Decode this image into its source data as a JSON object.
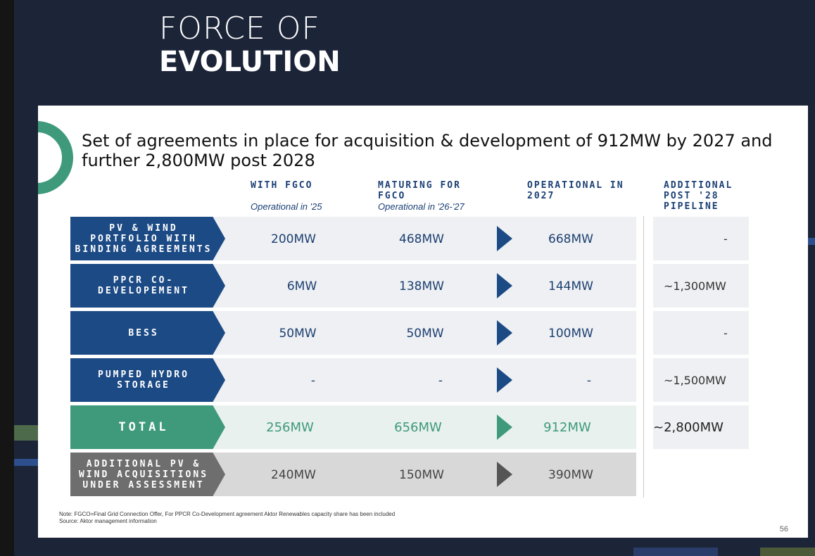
{
  "hero": {
    "line1": "FORCE OF",
    "line2": "EVOLUTION"
  },
  "headline": "Set of agreements in place for acquisition & development of 912MW by 2027 and further 2,800MW post 2028",
  "columns": {
    "fgco": {
      "title": "WITH FGCO",
      "sub": "Operational in '25"
    },
    "maturing": {
      "title": "MATURING FOR FGCO",
      "sub": "Operational in '26-'27"
    },
    "operational": {
      "title": "OPERATIONAL IN 2027"
    },
    "pipeline": {
      "title": "ADDITIONAL POST '28 PIPELINE"
    }
  },
  "rows": [
    {
      "label": "PV & WIND PORTFOLIO WITH BINDING AGREEMENTS",
      "fgco": "200MW",
      "maturing": "468MW",
      "operational": "668MW",
      "pipeline": "-"
    },
    {
      "label": "PPCR CO-DEVELOPEMENT",
      "fgco": "6MW",
      "maturing": "138MW",
      "operational": "144MW",
      "pipeline": "~1,300MW"
    },
    {
      "label": "BESS",
      "fgco": "50MW",
      "maturing": "50MW",
      "operational": "100MW",
      "pipeline": "-"
    },
    {
      "label": "PUMPED HYDRO STORAGE",
      "fgco": "-",
      "maturing": "-",
      "operational": "-",
      "pipeline": "~1,500MW"
    },
    {
      "label": "TOTAL",
      "fgco": "256MW",
      "maturing": "656MW",
      "operational": "912MW",
      "pipeline": "~2,800MW"
    },
    {
      "label": "ADDITIONAL PV & WIND ACQUISITIONS UNDER ASSESSMENT",
      "fgco": "240MW",
      "maturing": "150MW",
      "operational": "390MW"
    }
  ],
  "note": {
    "line1": "Note: FGCO=Final Grid Connection Offer, For PPCR Co-Development agreement Aktor Renewables capacity share has been included",
    "line2": "Source: Aktor management information"
  },
  "page_number": "56",
  "colors": {
    "navy": "#1c4a85",
    "green": "#3e9a7b",
    "gray": "#6e6e6e",
    "background": "#1c2438"
  }
}
